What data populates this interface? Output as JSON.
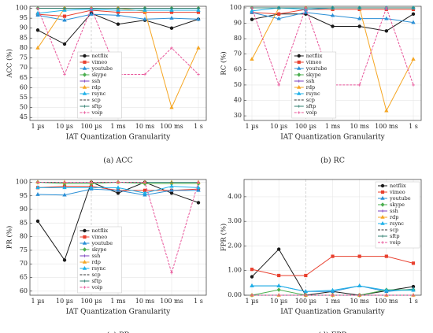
{
  "chart_data": [
    {
      "type": "line",
      "caption": "(a) ACC",
      "xlabel": "IAT Quantization Granularity",
      "ylabel": "ACC (%)",
      "grid": true,
      "legend": "lower center",
      "categories": [
        "1 µs",
        "10 µs",
        "100 µs",
        "1 ms",
        "10 ms",
        "100 ms",
        "1 s"
      ],
      "ylim": [
        43.5,
        101
      ],
      "yticks": [
        45,
        50,
        55,
        60,
        65,
        70,
        75,
        80,
        85,
        90,
        95,
        100
      ],
      "series": [
        {
          "name": "netflix",
          "color": "#1a1a1a",
          "marker": "circle",
          "values": [
            89,
            82,
            97.5,
            92,
            94,
            90,
            94.5
          ]
        },
        {
          "name": "vimeo",
          "color": "#e8402f",
          "marker": "square",
          "values": [
            97,
            96,
            99,
            98,
            98,
            98,
            98
          ]
        },
        {
          "name": "youtube",
          "color": "#2a8fd6",
          "marker": "triangle",
          "values": [
            96.5,
            94,
            97,
            96.5,
            94.5,
            95,
            94.5
          ]
        },
        {
          "name": "skype",
          "color": "#4caf50",
          "marker": "diamond",
          "values": [
            100,
            100,
            100,
            100,
            100,
            100,
            100
          ]
        },
        {
          "name": "ssh",
          "color": "#7b3fbf",
          "marker": "cross",
          "values": [
            100,
            100,
            100,
            100,
            100,
            100,
            100
          ]
        },
        {
          "name": "rdp",
          "color": "#f5a623",
          "marker": "triangle",
          "values": [
            80,
            100,
            100,
            100,
            98.5,
            50,
            80
          ]
        },
        {
          "name": "rsync",
          "color": "#1eb0e8",
          "marker": "triangle",
          "values": [
            97.5,
            99,
            99.5,
            99,
            99,
            99,
            99
          ]
        },
        {
          "name": "scp",
          "color": "#333333",
          "marker": "none",
          "dash": true,
          "values": [
            100,
            100,
            100,
            100,
            100,
            100,
            100
          ]
        },
        {
          "name": "sftp",
          "color": "#2f7f6f",
          "marker": "cross",
          "values": [
            100,
            100,
            100,
            100,
            100,
            100,
            100
          ]
        },
        {
          "name": "voip",
          "color": "#e8559a",
          "marker": "cross",
          "dash": true,
          "values": [
            100,
            66.7,
            100,
            66.7,
            66.7,
            80,
            66.7
          ]
        }
      ]
    },
    {
      "type": "line",
      "caption": "(b) RC",
      "xlabel": "IAT Quantization Granularity",
      "ylabel": "RC (%)",
      "grid": true,
      "legend": "lower center",
      "categories": [
        "1 µs",
        "10 µs",
        "100 µs",
        "1 ms",
        "10 ms",
        "100 ms",
        "1 s"
      ],
      "ylim": [
        27,
        101
      ],
      "yticks": [
        30,
        40,
        50,
        60,
        70,
        80,
        90,
        100
      ],
      "series": [
        {
          "name": "netflix",
          "color": "#1a1a1a",
          "marker": "circle",
          "values": [
            92.5,
            96,
            96,
            88,
            88,
            85,
            96
          ]
        },
        {
          "name": "vimeo",
          "color": "#e8402f",
          "marker": "square",
          "values": [
            97,
            96,
            99,
            99,
            99,
            99,
            99
          ]
        },
        {
          "name": "youtube",
          "color": "#2a8fd6",
          "marker": "triangle",
          "values": [
            97,
            93,
            97,
            95,
            93,
            93,
            90.5
          ]
        },
        {
          "name": "skype",
          "color": "#4caf50",
          "marker": "diamond",
          "values": [
            100,
            100,
            100,
            100,
            100,
            100,
            100
          ]
        },
        {
          "name": "ssh",
          "color": "#7b3fbf",
          "marker": "cross",
          "values": [
            100,
            100,
            100,
            100,
            100,
            100,
            100
          ]
        },
        {
          "name": "rdp",
          "color": "#f5a623",
          "marker": "triangle",
          "values": [
            66.7,
            100,
            100,
            100,
            100,
            33.3,
            66.7
          ]
        },
        {
          "name": "rsync",
          "color": "#1eb0e8",
          "marker": "triangle",
          "values": [
            98,
            100,
            99,
            100,
            100,
            100,
            100
          ]
        },
        {
          "name": "scp",
          "color": "#333333",
          "marker": "none",
          "dash": true,
          "values": [
            100,
            100,
            100,
            100,
            100,
            100,
            100
          ]
        },
        {
          "name": "sftp",
          "color": "#2f7f6f",
          "marker": "cross",
          "values": [
            100,
            100,
            100,
            100,
            100,
            100,
            100
          ]
        },
        {
          "name": "voip",
          "color": "#e8559a",
          "marker": "cross",
          "dash": true,
          "values": [
            100,
            50,
            100,
            50,
            50,
            100,
            50
          ]
        }
      ]
    },
    {
      "type": "line",
      "caption": "(c) PR",
      "xlabel": "IAT Quantization Granularity",
      "ylabel": "PR (%)",
      "grid": true,
      "legend": "lower center",
      "categories": [
        "1 µs",
        "10 µs",
        "100 µs",
        "1 ms",
        "10 ms",
        "100 ms",
        "1 s"
      ],
      "ylim": [
        58.5,
        101
      ],
      "yticks": [
        60,
        65,
        70,
        75,
        80,
        85,
        90,
        95,
        100
      ],
      "series": [
        {
          "name": "netflix",
          "color": "#1a1a1a",
          "marker": "circle",
          "values": [
            85.7,
            71.4,
            100,
            96,
            100,
            96,
            92.5
          ]
        },
        {
          "name": "vimeo",
          "color": "#e8402f",
          "marker": "square",
          "values": [
            98,
            98.5,
            98.5,
            97,
            97,
            97,
            97.5
          ]
        },
        {
          "name": "youtube",
          "color": "#2a8fd6",
          "marker": "triangle",
          "values": [
            95.5,
            95.3,
            97.5,
            97,
            95.3,
            97,
            97
          ]
        },
        {
          "name": "skype",
          "color": "#4caf50",
          "marker": "diamond",
          "values": [
            100,
            99.5,
            99.5,
            100,
            99.5,
            99.5,
            99.5
          ]
        },
        {
          "name": "ssh",
          "color": "#7b3fbf",
          "marker": "cross",
          "values": [
            100,
            100,
            100,
            100,
            100,
            100,
            100
          ]
        },
        {
          "name": "rdp",
          "color": "#f5a623",
          "marker": "triangle",
          "values": [
            100,
            100,
            100,
            100,
            100,
            100,
            100
          ]
        },
        {
          "name": "rsync",
          "color": "#1eb0e8",
          "marker": "triangle",
          "values": [
            98,
            98,
            98,
            98,
            96,
            98.5,
            98
          ]
        },
        {
          "name": "scp",
          "color": "#333333",
          "marker": "none",
          "dash": true,
          "values": [
            100,
            100,
            100,
            100,
            100,
            100,
            100
          ]
        },
        {
          "name": "sftp",
          "color": "#2f7f6f",
          "marker": "cross",
          "values": [
            100,
            100,
            100,
            100,
            100,
            100,
            100
          ]
        },
        {
          "name": "voip",
          "color": "#e8559a",
          "marker": "cross",
          "dash": true,
          "values": [
            100,
            100,
            100,
            100,
            100,
            66.7,
            100
          ]
        }
      ]
    },
    {
      "type": "line",
      "caption": "(d) FPR",
      "xlabel": "IAT Quantization Granularity",
      "ylabel": "FPR (%)",
      "grid": true,
      "legend": "upper right",
      "categories": [
        "1 µs",
        "10 µs",
        "100 µs",
        "1 ms",
        "10 ms",
        "100 ms",
        "1 s"
      ],
      "ylim": [
        0,
        4.7
      ],
      "yticks": [
        {
          "value": 0,
          "label": "0.00"
        },
        {
          "value": 1,
          "label": "1.00"
        },
        {
          "value": 2,
          "label": "2.00"
        },
        {
          "value": 3,
          "label": "3.00"
        },
        {
          "value": 4,
          "label": "4.00"
        }
      ],
      "series": [
        {
          "name": "netflix",
          "color": "#1a1a1a",
          "marker": "circle",
          "values": [
            0.75,
            1.87,
            0,
            0.15,
            0,
            0.18,
            0.35
          ]
        },
        {
          "name": "vimeo",
          "color": "#e8402f",
          "marker": "square",
          "values": [
            1.05,
            0.8,
            0.8,
            1.58,
            1.58,
            1.58,
            1.3
          ]
        },
        {
          "name": "youtube",
          "color": "#2a8fd6",
          "marker": "triangle",
          "values": [
            0.38,
            0.38,
            0.15,
            0.15,
            0.38,
            0.15,
            0.25
          ]
        },
        {
          "name": "skype",
          "color": "#4caf50",
          "marker": "diamond",
          "values": [
            0,
            0.22,
            0,
            0,
            0,
            0.22,
            0.22
          ]
        },
        {
          "name": "ssh",
          "color": "#7b3fbf",
          "marker": "cross",
          "values": [
            0,
            0,
            0,
            0,
            0,
            0,
            0
          ]
        },
        {
          "name": "rdp",
          "color": "#f5a623",
          "marker": "triangle",
          "values": [
            0,
            0,
            0,
            0,
            0,
            0,
            0
          ]
        },
        {
          "name": "rsync",
          "color": "#1eb0e8",
          "marker": "triangle",
          "values": [
            0.38,
            0.38,
            0.15,
            0.2,
            0.38,
            0.2,
            0.2
          ]
        },
        {
          "name": "scp",
          "color": "#333333",
          "marker": "none",
          "dash": true,
          "values": [
            0,
            0,
            0,
            0,
            0,
            0,
            0
          ]
        },
        {
          "name": "sftp",
          "color": "#2f7f6f",
          "marker": "cross",
          "values": [
            0,
            0,
            0,
            0,
            0,
            0,
            0
          ]
        },
        {
          "name": "voip",
          "color": "#e8559a",
          "marker": "cross",
          "dash": true,
          "values": [
            0,
            0,
            0,
            0,
            0,
            0,
            0
          ]
        }
      ]
    }
  ]
}
